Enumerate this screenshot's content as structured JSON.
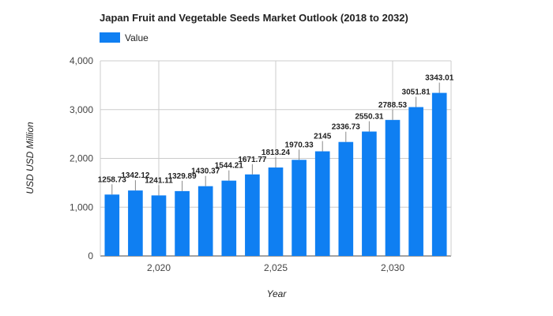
{
  "chart_data": {
    "type": "bar",
    "title": "Japan Fruit and Vegetable Seeds Market Outlook (2018 to 2032)",
    "xlabel": "Year",
    "ylabel": "USD USD Million",
    "series": [
      {
        "name": "Value",
        "color": "#0f7ff2",
        "x": [
          2018,
          2019,
          2020,
          2021,
          2022,
          2023,
          2024,
          2025,
          2026,
          2027,
          2028,
          2029,
          2030,
          2031,
          2032
        ],
        "values": [
          1258.73,
          1342.12,
          1241.11,
          1329.89,
          1430.37,
          1544.21,
          1671.77,
          1813.24,
          1970.33,
          2145,
          2336.73,
          2550.31,
          2788.53,
          3051.81,
          3343.01
        ]
      }
    ],
    "data_labels": [
      "1258.73",
      "1342.12",
      "1241.11",
      "1329.89",
      "1430.37",
      "1544.21",
      "1671.77",
      "1813.24",
      "1970.33",
      "2145",
      "2336.73",
      "2550.31",
      "2788.53",
      "3051.81",
      "3343.01"
    ],
    "ylim": [
      0,
      4000
    ],
    "yticks": [
      0,
      1000,
      2000,
      3000,
      4000
    ],
    "ytick_labels": [
      "0",
      "1,000",
      "2,000",
      "3,000",
      "4,000"
    ],
    "xlim": [
      2017.5,
      2032.5
    ],
    "xticks": [
      2020,
      2025,
      2030
    ],
    "xtick_labels": [
      "2,020",
      "2,025",
      "2,030"
    ],
    "grid": true,
    "legend_position": "top-left"
  }
}
